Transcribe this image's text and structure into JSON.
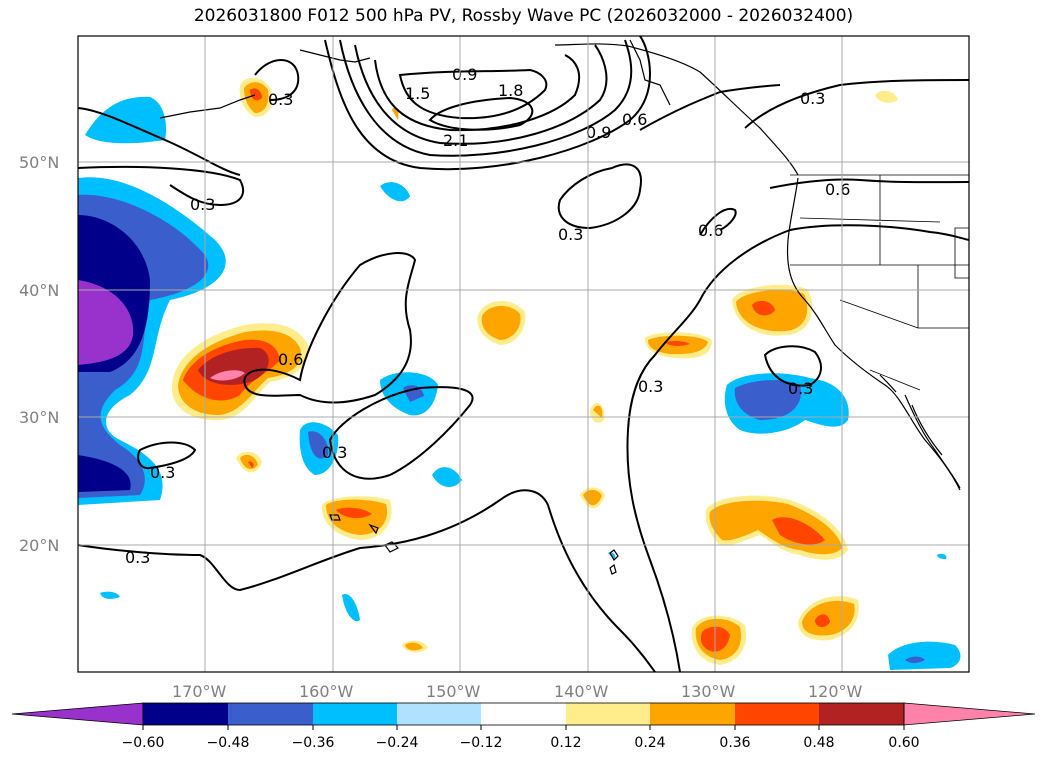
{
  "title": "2026031800 F012 500 hPa PV, Rossby Wave PC (2026032000 - 2026032400)",
  "map": {
    "lat_labels": [
      "50°N",
      "40°N",
      "30°N",
      "20°N"
    ],
    "lon_labels": [
      "170°W",
      "160°W",
      "150°W",
      "140°W",
      "130°W",
      "120°W"
    ],
    "contour_labels": [
      "0.3",
      "0.3",
      "0.3",
      "0.3",
      "0.3",
      "0.3",
      "0.3",
      "0.3",
      "0.6",
      "0.6",
      "0.6",
      "0.6",
      "0.9",
      "0.9",
      "1.5",
      "1.8",
      "2.1"
    ]
  },
  "colorbar": {
    "ticks": [
      "−0.60",
      "−0.48",
      "−0.36",
      "−0.24",
      "−0.12",
      "0.12",
      "0.24",
      "0.36",
      "0.48",
      "0.60"
    ],
    "colors": [
      "#9932cc",
      "#00008b",
      "#3a5fcd",
      "#00bfff",
      "#b0e2ff",
      "#ffffff",
      "#ffec8b",
      "#ffa500",
      "#ff4500",
      "#b22222",
      "#ff82ab"
    ]
  }
}
